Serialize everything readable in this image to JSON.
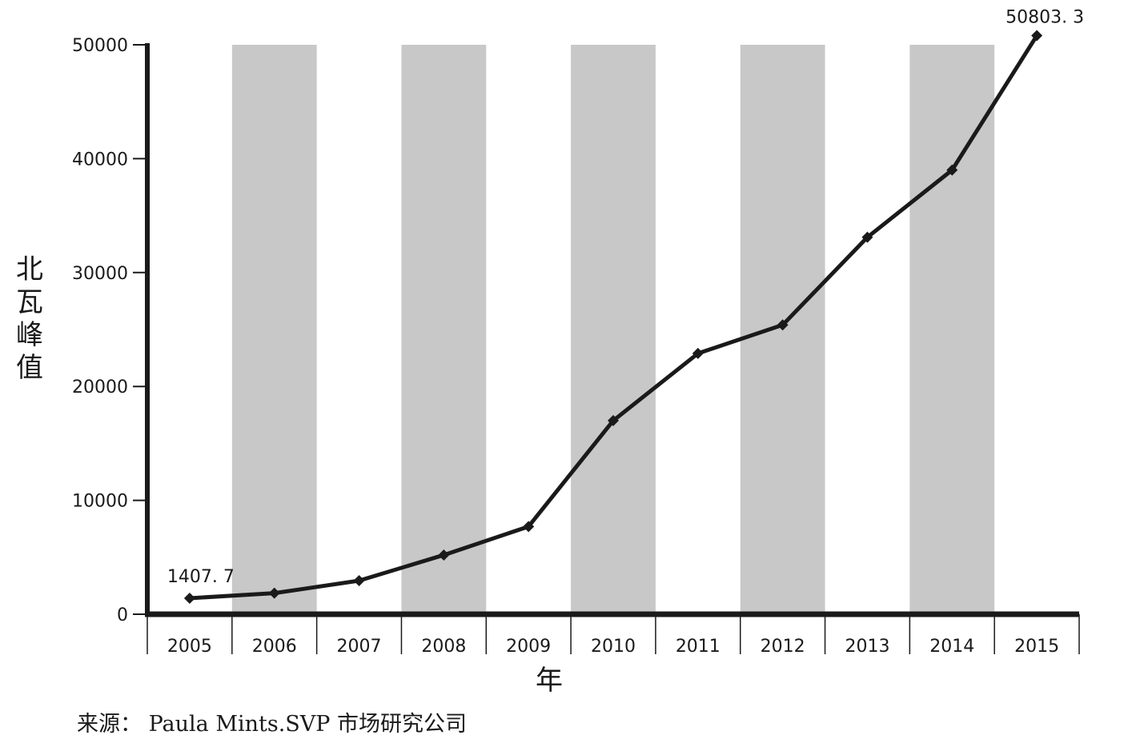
{
  "chart_data": {
    "type": "line",
    "categories": [
      "2005",
      "2006",
      "2007",
      "2008",
      "2009",
      "2010",
      "2011",
      "2012",
      "2013",
      "2014",
      "2015"
    ],
    "series": [
      {
        "values": [
          1407.7,
          1850,
          2950,
          5200,
          7700,
          17000,
          22900,
          25400,
          33100,
          39000,
          50803.3
        ]
      }
    ],
    "ylim": [
      0,
      50000
    ],
    "yticks": [
      "0",
      "10000",
      "20000",
      "30000",
      "40000",
      "50000"
    ],
    "ytick_values": [
      0,
      10000,
      20000,
      30000,
      40000,
      50000
    ],
    "ylabel": "北瓦峰值",
    "xlabel": "年",
    "annotations": [
      {
        "category": "2005",
        "text": "1407. 7"
      },
      {
        "category": "2015",
        "text": "50803. 3"
      }
    ],
    "band_pattern": "alternating gray column bands (2006, 2008, 2010, 2012, 2014)",
    "band_color": "#c8c8c8",
    "line_color": "#1a1a1a",
    "marker": "diamond",
    "grid": false
  },
  "source": "来源： Paula Mints.SVP 市场研究公司"
}
